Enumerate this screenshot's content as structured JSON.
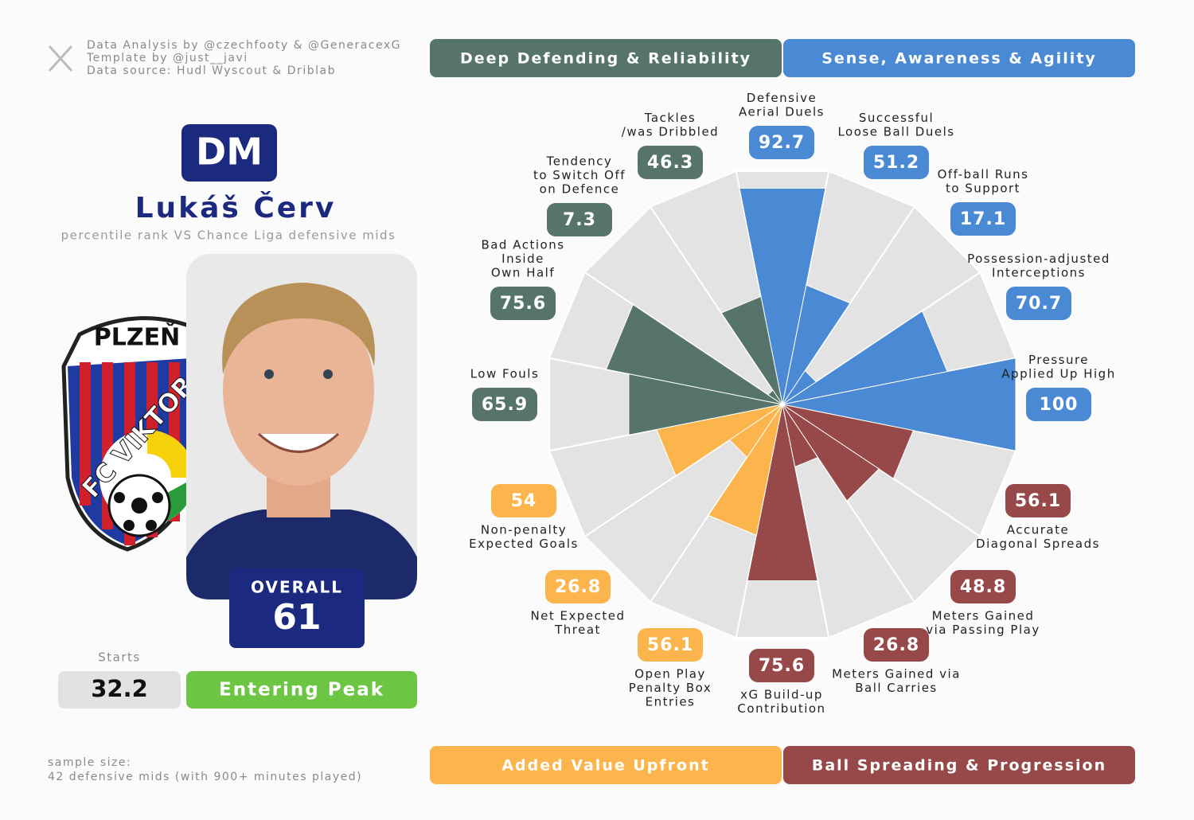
{
  "credits": [
    "Data Analysis by @czechfooty & @GeneracexG",
    "Template by @just__javi",
    "Data source: Hudl Wyscout & Driblab"
  ],
  "player": {
    "position": "DM",
    "name": "Lukáš Červ",
    "subtitle": "percentile rank VS Chance Liga defensive mids",
    "overall_label": "OVERALL",
    "overall": 61,
    "starts_label": "Starts",
    "starts": 32.2,
    "phase": "Entering Peak"
  },
  "logo": {
    "top": "PLZEŇ",
    "arc": "FC VIKTOR"
  },
  "sample_size": [
    "sample size:",
    "42 defensive mids (with 900+ minutes played)"
  ],
  "chart_data": {
    "type": "pizza",
    "series": [
      {
        "name": "Sense, Awareness & Agility",
        "color": "#4a89d4",
        "categories": [
          [
            "Defensive",
            "Aerial Duels"
          ],
          [
            "Successful",
            "Loose Ball Duels"
          ],
          [
            "Off-ball Runs",
            "to Support"
          ],
          [
            "Possession-adjusted",
            "Interceptions"
          ],
          [
            "Pressure",
            "Applied Up High"
          ]
        ],
        "values": [
          92.7,
          51.2,
          17.1,
          70.7,
          100
        ]
      },
      {
        "name": "Ball Spreading & Progression",
        "color": "#974848",
        "categories": [
          [
            "Accurate",
            "Diagonal Spreads"
          ],
          [
            "Meters Gained",
            "via Passing Play"
          ],
          [
            "Meters Gained via",
            "Ball Carries"
          ],
          [
            "xG Build-up",
            "Contribution"
          ]
        ],
        "values": [
          56.1,
          48.8,
          26.8,
          75.6
        ]
      },
      {
        "name": "Added Value Upfront",
        "color": "#fbb54c",
        "categories": [
          [
            "Open Play",
            "Penalty Box",
            "Entries"
          ],
          [
            "Net Expected",
            "Threat"
          ],
          [
            "Non-penalty",
            "Expected Goals"
          ]
        ],
        "values": [
          56.1,
          26.8,
          54
        ]
      },
      {
        "name": "Deep Defending & Reliability",
        "color": "#56736c",
        "categories": [
          [
            "Low Fouls"
          ],
          [
            "Bad Actions",
            "Inside",
            "Own Half"
          ],
          [
            "Tendency",
            "to Switch Off",
            "on Defence"
          ],
          [
            "Tackles",
            "/was Dribbled"
          ]
        ],
        "values": [
          65.9,
          75.6,
          7.3,
          46.3
        ]
      }
    ],
    "ylim": [
      0,
      100
    ]
  }
}
